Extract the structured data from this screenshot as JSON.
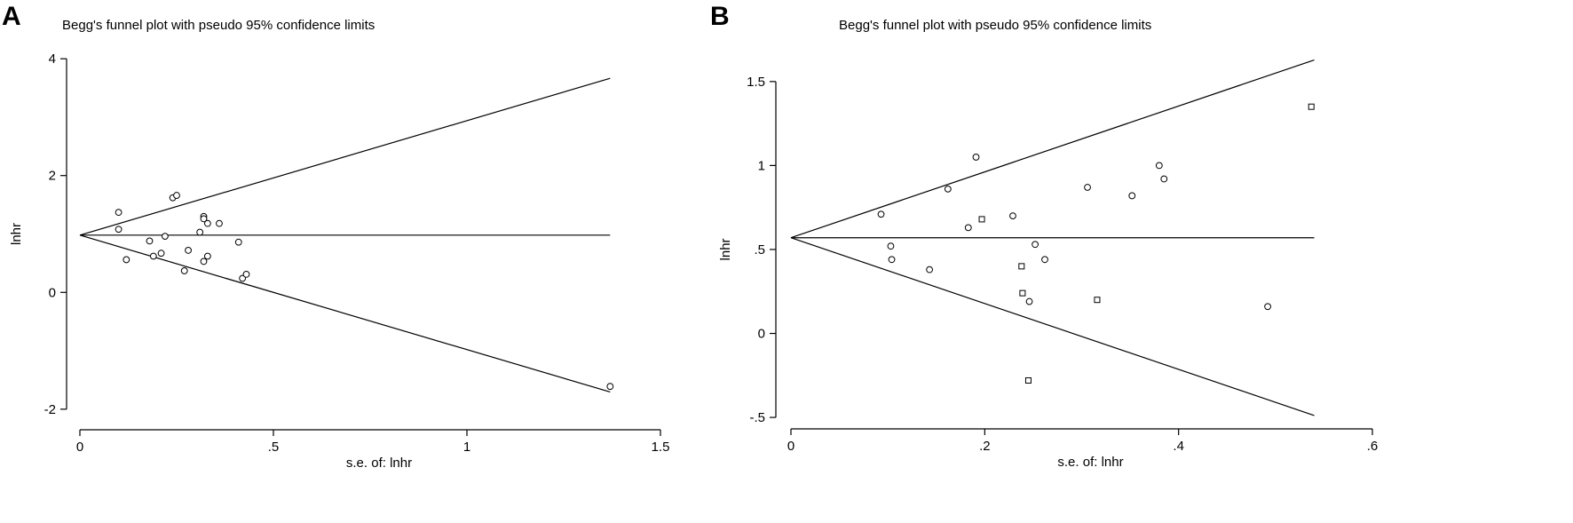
{
  "panels": [
    {
      "letter": "A",
      "title": "Begg's funnel plot with pseudo 95% confidence limits",
      "xlabel": "s.e. of: lnhr",
      "ylabel": "lnhr"
    },
    {
      "letter": "B",
      "title": "Begg's funnel plot with pseudo 95% confidence limits",
      "xlabel": "s.e. of: lnhr",
      "ylabel": "lnhr"
    }
  ],
  "chart_data": [
    {
      "type": "scatter",
      "title": "Begg's funnel plot with pseudo 95% confidence limits",
      "xlabel": "s.e. of: lnhr",
      "ylabel": "lnhr",
      "xlim": [
        0,
        1.5
      ],
      "ylim": [
        -2.2,
        4.2
      ],
      "xticks": [
        0,
        0.5,
        1,
        1.5
      ],
      "xtick_labels": [
        "0",
        ".5",
        "1",
        "1.5"
      ],
      "yticks": [
        -2,
        0,
        2,
        4
      ],
      "ytick_labels": [
        "-2",
        "0",
        "2",
        "4"
      ],
      "pooled_estimate": 0.98,
      "funnel_max_se": 1.37,
      "grid": false,
      "marker": "circle",
      "points": [
        {
          "x": 0.1,
          "y": 1.37
        },
        {
          "x": 0.1,
          "y": 1.08
        },
        {
          "x": 0.12,
          "y": 0.56
        },
        {
          "x": 0.18,
          "y": 0.88
        },
        {
          "x": 0.19,
          "y": 0.62
        },
        {
          "x": 0.21,
          "y": 0.67
        },
        {
          "x": 0.22,
          "y": 0.96
        },
        {
          "x": 0.24,
          "y": 1.62
        },
        {
          "x": 0.25,
          "y": 1.66
        },
        {
          "x": 0.27,
          "y": 0.37
        },
        {
          "x": 0.28,
          "y": 0.72
        },
        {
          "x": 0.31,
          "y": 1.03
        },
        {
          "x": 0.32,
          "y": 1.3
        },
        {
          "x": 0.32,
          "y": 1.26
        },
        {
          "x": 0.32,
          "y": 0.53
        },
        {
          "x": 0.33,
          "y": 1.18
        },
        {
          "x": 0.33,
          "y": 0.62
        },
        {
          "x": 0.36,
          "y": 1.18
        },
        {
          "x": 0.41,
          "y": 0.86
        },
        {
          "x": 0.42,
          "y": 0.24
        },
        {
          "x": 0.43,
          "y": 0.31
        },
        {
          "x": 1.37,
          "y": -1.61
        }
      ]
    },
    {
      "type": "scatter",
      "title": "Begg's funnel plot with pseudo 95% confidence limits",
      "xlabel": "s.e. of: lnhr",
      "ylabel": "lnhr",
      "xlim": [
        0,
        0.6
      ],
      "ylim": [
        -0.6,
        1.7
      ],
      "xticks": [
        0,
        0.2,
        0.4,
        0.6
      ],
      "xtick_labels": [
        "0",
        ".2",
        ".4",
        ".6"
      ],
      "yticks": [
        -0.5,
        0,
        0.5,
        1,
        1.5
      ],
      "ytick_labels": [
        "-.5",
        "0",
        ".5",
        "1",
        "1.5"
      ],
      "pooled_estimate": 0.57,
      "funnel_max_se": 0.54,
      "grid": false,
      "marker": "mixed",
      "points": [
        {
          "x": 0.093,
          "y": 0.71,
          "shape": "circle"
        },
        {
          "x": 0.103,
          "y": 0.52,
          "shape": "circle"
        },
        {
          "x": 0.104,
          "y": 0.44,
          "shape": "circle"
        },
        {
          "x": 0.143,
          "y": 0.38,
          "shape": "circle"
        },
        {
          "x": 0.162,
          "y": 0.86,
          "shape": "circle"
        },
        {
          "x": 0.183,
          "y": 0.63,
          "shape": "circle"
        },
        {
          "x": 0.191,
          "y": 1.05,
          "shape": "circle"
        },
        {
          "x": 0.197,
          "y": 0.68,
          "shape": "square"
        },
        {
          "x": 0.229,
          "y": 0.7,
          "shape": "circle"
        },
        {
          "x": 0.238,
          "y": 0.4,
          "shape": "square"
        },
        {
          "x": 0.239,
          "y": 0.24,
          "shape": "square"
        },
        {
          "x": 0.245,
          "y": -0.28,
          "shape": "square"
        },
        {
          "x": 0.246,
          "y": 0.19,
          "shape": "circle"
        },
        {
          "x": 0.252,
          "y": 0.53,
          "shape": "circle"
        },
        {
          "x": 0.262,
          "y": 0.44,
          "shape": "circle"
        },
        {
          "x": 0.306,
          "y": 0.87,
          "shape": "circle"
        },
        {
          "x": 0.316,
          "y": 0.2,
          "shape": "square"
        },
        {
          "x": 0.352,
          "y": 0.82,
          "shape": "circle"
        },
        {
          "x": 0.38,
          "y": 1.0,
          "shape": "circle"
        },
        {
          "x": 0.385,
          "y": 0.92,
          "shape": "circle"
        },
        {
          "x": 0.492,
          "y": 0.16,
          "shape": "circle"
        },
        {
          "x": 0.537,
          "y": 1.35,
          "shape": "square"
        }
      ]
    }
  ]
}
